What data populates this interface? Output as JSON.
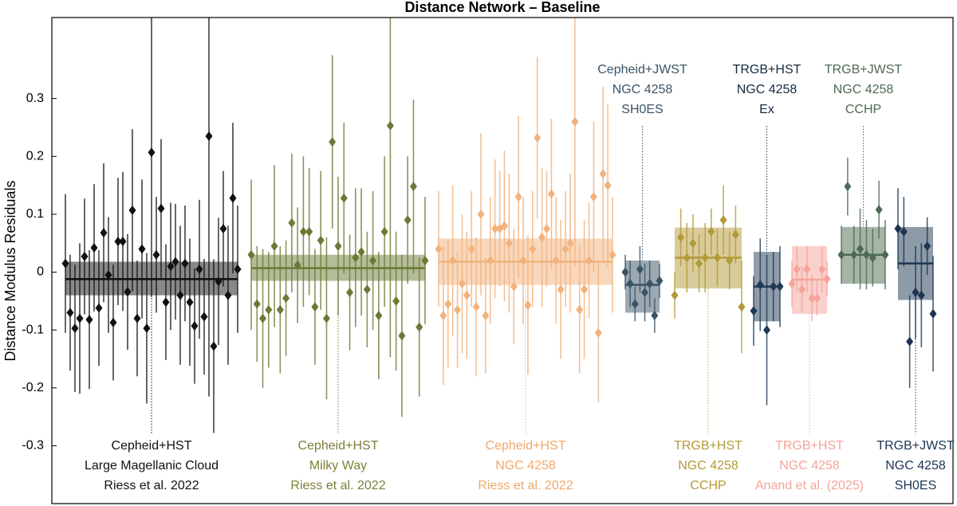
{
  "chart_data": {
    "type": "errorbar",
    "title": "Distance Network – Baseline",
    "y_label": "Distance Modulus Residuals",
    "ylim": [
      -0.4,
      0.44
    ],
    "yticks": [
      -0.3,
      -0.2,
      -0.1,
      0,
      0.1,
      0.2,
      0.3
    ],
    "groups": [
      {
        "name": [
          "Cepheid+HST",
          "Large Magellanic Cloud",
          "Riess et al. 2022"
        ],
        "color": "#111111",
        "label_color": "#111111",
        "mean": -0.012,
        "band": [
          -0.04,
          0.018
        ],
        "values": [
          0.015,
          -0.07,
          -0.097,
          -0.08,
          0.027,
          -0.082,
          0.042,
          -0.062,
          0.068,
          -0.005,
          -0.087,
          0.053,
          0.053,
          -0.034,
          0.107,
          -0.08,
          0.04,
          -0.097,
          0.207,
          0.03,
          0.11,
          -0.052,
          0.01,
          0.018,
          -0.04,
          0.015,
          -0.052,
          -0.093,
          0.005,
          -0.077,
          0.235,
          -0.128,
          -0.016,
          0.075,
          -0.04,
          0.128,
          0.005
        ],
        "errors": [
          0.12,
          0.1,
          0.11,
          0.13,
          0.1,
          0.12,
          0.11,
          0.1,
          0.12,
          0.1,
          0.1,
          0.11,
          0.12,
          0.1,
          0.14,
          0.1,
          0.12,
          0.13,
          0.25,
          0.1,
          0.12,
          0.1,
          0.11,
          0.1,
          0.12,
          0.1,
          0.11,
          0.1,
          0.12,
          0.1,
          0.45,
          0.15,
          0.11,
          0.1,
          0.12,
          0.13,
          0.11
        ]
      },
      {
        "name": [
          "Cepheid+HST",
          "Milky Way",
          "Riess et al. 2022"
        ],
        "color": "#6a7a34",
        "label_color": "#7d7f3a",
        "mean": 0.007,
        "band": [
          -0.015,
          0.03
        ],
        "values": [
          0.03,
          -0.055,
          -0.08,
          -0.065,
          0.045,
          -0.065,
          -0.045,
          0.085,
          0.012,
          0.07,
          0.07,
          -0.06,
          0.055,
          -0.08,
          0.225,
          0.045,
          0.128,
          -0.035,
          0.025,
          0.035,
          -0.03,
          0.02,
          -0.075,
          0.07,
          0.253,
          -0.05,
          -0.11,
          0.09,
          0.148,
          -0.095,
          0.02
        ],
        "errors": [
          0.13,
          0.1,
          0.12,
          0.1,
          0.14,
          0.11,
          0.1,
          0.12,
          0.1,
          0.13,
          0.11,
          0.1,
          0.12,
          0.14,
          0.15,
          0.12,
          0.13,
          0.1,
          0.12,
          0.11,
          0.1,
          0.12,
          0.11,
          0.13,
          0.4,
          0.12,
          0.14,
          0.11,
          0.15,
          0.12,
          0.11
        ]
      },
      {
        "name": [
          "Cepheid+HST",
          "NGC 4258",
          "Riess et al. 2022"
        ],
        "color": "#f2b27c",
        "label_color": "#f0a86a",
        "mean": 0.018,
        "band": [
          -0.022,
          0.058
        ],
        "values": [
          0.04,
          -0.075,
          -0.055,
          0.02,
          -0.065,
          -0.02,
          -0.04,
          0.04,
          -0.06,
          0.1,
          -0.075,
          0.02,
          0.075,
          0.075,
          0.08,
          0.05,
          -0.025,
          0.13,
          0.02,
          -0.057,
          0.04,
          0.232,
          0.06,
          0.075,
          0.135,
          0.02,
          -0.03,
          0.04,
          0.05,
          0.26,
          -0.065,
          -0.03,
          0.02,
          0.13,
          -0.105,
          0.17,
          0.15,
          0.03
        ],
        "errors": [
          0.1,
          0.12,
          0.11,
          0.13,
          0.1,
          0.12,
          0.11,
          0.1,
          0.12,
          0.14,
          0.1,
          0.11,
          0.12,
          0.1,
          0.13,
          0.12,
          0.1,
          0.14,
          0.11,
          0.12,
          0.1,
          0.14,
          0.12,
          0.1,
          0.13,
          0.11,
          0.12,
          0.1,
          0.12,
          0.25,
          0.11,
          0.12,
          0.1,
          0.13,
          0.12,
          0.15,
          0.14,
          0.1
        ]
      },
      {
        "name": [
          "Cepheid+JWST",
          "NGC 4258",
          "SH0ES"
        ],
        "color": "#3b5465",
        "label_color": "#3b5465",
        "mean": -0.022,
        "band": [
          -0.07,
          0.02
        ],
        "values": [
          0.0,
          -0.02,
          -0.055,
          0.005,
          -0.035,
          -0.02,
          -0.075,
          -0.015
        ],
        "errors": [
          0.03,
          0.04,
          0.03,
          0.04,
          0.05,
          0.04,
          0.03,
          0.03
        ]
      },
      {
        "name": [
          "TRGB+HST",
          "NGC 4258",
          "CCHP"
        ],
        "color": "#b39a38",
        "label_color": "#b39a38",
        "mean": 0.025,
        "band": [
          -0.028,
          0.077
        ],
        "values": [
          -0.04,
          0.06,
          0.025,
          0.05,
          0.015,
          0.025,
          0.07,
          0.025,
          0.09,
          0.02,
          0.065,
          -0.06
        ],
        "errors": [
          0.04,
          0.05,
          0.06,
          0.05,
          0.05,
          0.06,
          0.04,
          0.05,
          0.06,
          0.05,
          0.05,
          0.08
        ]
      },
      {
        "name": [
          "TRGB+HST",
          "NGC 4258",
          "Ex"
        ],
        "color": "#1f3a54",
        "label_color": "#142a40",
        "mean": -0.025,
        "band": [
          -0.085,
          0.035
        ],
        "values": [
          -0.067,
          -0.022,
          -0.1,
          -0.025,
          -0.025
        ],
        "errors": [
          0.06,
          0.08,
          0.13,
          0.06,
          0.07
        ]
      },
      {
        "name": [
          "TRGB+HST",
          "NGC 4258",
          "Anand et al. (2025)"
        ],
        "color": "#f4a49a",
        "label_color": "#f4a49a",
        "mean": -0.013,
        "band": [
          -0.072,
          0.045
        ],
        "values": [
          -0.02,
          0.005,
          -0.03,
          0.005,
          -0.045,
          -0.045,
          0.005,
          -0.012
        ],
        "errors": [
          0.04,
          0.04,
          0.04,
          0.04,
          0.04,
          0.03,
          0.04,
          0.03
        ]
      },
      {
        "name": [
          "TRGB+JWST",
          "NGC 4258",
          "CCHP"
        ],
        "color": "#4d6a52",
        "label_color": "#4d6a52",
        "mean": 0.03,
        "band": [
          -0.02,
          0.078
        ],
        "values": [
          0.03,
          0.148,
          0.03,
          0.04,
          0.03,
          0.025,
          0.108,
          0.03
        ],
        "errors": [
          0.05,
          0.05,
          0.05,
          0.07,
          0.06,
          0.05,
          0.05,
          0.06
        ]
      },
      {
        "name": [
          "TRGB+JWST",
          "NGC 4258",
          "SH0ES"
        ],
        "color": "#1c3550",
        "label_color": "#1c3550",
        "mean": 0.015,
        "band": [
          -0.048,
          0.078
        ],
        "values": [
          0.075,
          0.07,
          -0.12,
          -0.035,
          -0.04,
          0.045,
          -0.072
        ],
        "errors": [
          0.07,
          0.06,
          0.08,
          0.08,
          0.09,
          0.05,
          0.1
        ]
      }
    ]
  }
}
